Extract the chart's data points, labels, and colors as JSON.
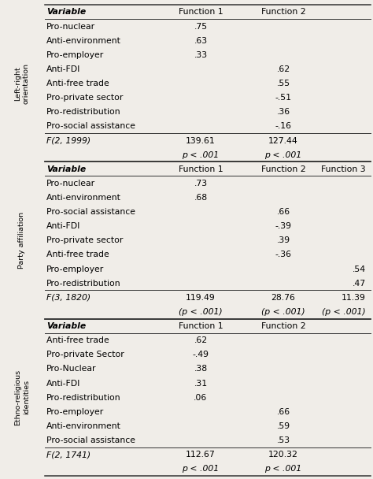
{
  "sections": [
    {
      "side_label": "Left-right\norientation",
      "header": [
        "Variable",
        "Function 1",
        "Function 2",
        ""
      ],
      "rows": [
        [
          "Pro-nuclear",
          ".75",
          "",
          ""
        ],
        [
          "Anti-environment",
          ".63",
          "",
          ""
        ],
        [
          "Pro-employer",
          ".33",
          "",
          ""
        ],
        [
          "Anti-FDI",
          "",
          ".62",
          ""
        ],
        [
          "Anti-free trade",
          "",
          ".55",
          ""
        ],
        [
          "Pro-private sector",
          "",
          "-.51",
          ""
        ],
        [
          "Pro-redistribution",
          "",
          ".36",
          ""
        ],
        [
          "Pro-social assistance",
          "",
          "-.16",
          ""
        ]
      ],
      "stat_row1": [
        "F(2, 1999)",
        "139.61",
        "127.44",
        ""
      ],
      "stat_row2": [
        "",
        "p < .001",
        "p < .001",
        ""
      ],
      "has_func3": false
    },
    {
      "side_label": "Party affiliation",
      "header": [
        "Variable",
        "Function 1",
        "Function 2",
        "Function 3"
      ],
      "rows": [
        [
          "Pro-nuclear",
          ".73",
          "",
          ""
        ],
        [
          "Anti-environment",
          ".68",
          "",
          ""
        ],
        [
          "Pro-social assistance",
          "",
          ".66",
          ""
        ],
        [
          "Anti-FDI",
          "",
          "-.39",
          ""
        ],
        [
          "Pro-private sector",
          "",
          ".39",
          ""
        ],
        [
          "Anti-free trade",
          "",
          "-.36",
          ""
        ],
        [
          "Pro-employer",
          "",
          "",
          ".54"
        ],
        [
          "Pro-redistribution",
          "",
          "",
          ".47"
        ]
      ],
      "stat_row1": [
        "F(3, 1820)",
        "119.49",
        "28.76",
        "11.39"
      ],
      "stat_row2": [
        "",
        "(p < .001)",
        "(p < .001)",
        "(p < .001)"
      ],
      "has_func3": true
    },
    {
      "side_label": "Ethno-religious\nidentities",
      "header": [
        "Variable",
        "Function 1",
        "Function 2",
        ""
      ],
      "rows": [
        [
          "Anti-free trade",
          ".62",
          "",
          ""
        ],
        [
          "Pro-private Sector",
          "-.49",
          "",
          ""
        ],
        [
          "Pro-Nuclear",
          ".38",
          "",
          ""
        ],
        [
          "Anti-FDI",
          ".31",
          "",
          ""
        ],
        [
          "Pro-redistribution",
          ".06",
          "",
          ""
        ],
        [
          "Pro-employer",
          "",
          ".66",
          ""
        ],
        [
          "Anti-environment",
          "",
          ".59",
          ""
        ],
        [
          "Pro-social assistance",
          "",
          ".53",
          ""
        ]
      ],
      "stat_row1": [
        "F(2, 1741)",
        "112.67",
        "120.32",
        ""
      ],
      "stat_row2": [
        "",
        "p < .001",
        "p < .001",
        ""
      ],
      "has_func3": false
    }
  ],
  "bg_color": "#f0ede8",
  "font_size": 7.8,
  "side_label_size": 6.8,
  "stat_italic": true
}
